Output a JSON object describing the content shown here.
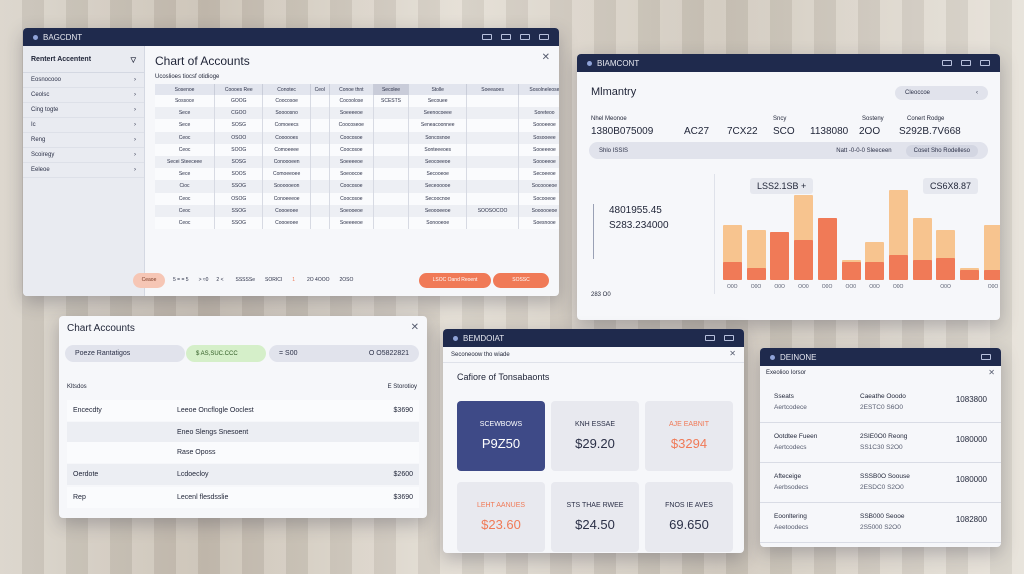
{
  "colors": {
    "titlebar": "#1f2a4d",
    "accent_orange": "#f07a57",
    "accent_peach": "#f7c48f",
    "card_navy": "#3e4a87"
  },
  "win_a": {
    "titlebar": "BAGCDNT",
    "sidebar_heading": "Rentert Accentent",
    "sidebar_items": [
      "Eosnocooo",
      "Ceolsc",
      "Cing togte",
      "Ic",
      "Reng",
      "Scoiregy",
      "Eeleoe"
    ],
    "title": "Chart of Accounts",
    "subtitle": "Ucoslioes tiocsf otidioge",
    "columns": [
      "Sosenoe",
      "Coooes Ree",
      "Conotec",
      "Ceol",
      "Conoe thnt",
      "Secolee",
      "Stolle",
      "Soeeaoes",
      "Sosolneleose"
    ],
    "rows": [
      [
        "Sossoce",
        "GOOG",
        "Coocosoe",
        "",
        "Cocoolose",
        "SCESTS",
        "Secouee",
        "",
        ""
      ],
      [
        "Sece",
        "CGOO",
        "Soooosno",
        "",
        "Soeeeeoe",
        "",
        "Seenocoeee",
        "",
        "Soreteoo"
      ],
      [
        "Sece",
        "SOSG",
        "Comoeecs",
        "",
        "Coocoseoe",
        "",
        "Seneacoonnee",
        "",
        "Soooeeoe"
      ],
      [
        "Ceoc",
        "OSOO",
        "Coooooes",
        "",
        "Coocosoe",
        "",
        "Soncosnoe",
        "",
        "Sosooeee"
      ],
      [
        "Ceoc",
        "SOOG",
        "Comoeeee",
        "",
        "Coocosoe",
        "",
        "Sonteeeoes",
        "",
        "Sooeeeoe"
      ],
      [
        "Secei Steeceee",
        "SOSG",
        "Conoooeen",
        "",
        "Soeeeeoe",
        "",
        "Seocoeeoe",
        "",
        "Soooeeoe"
      ],
      [
        "Sece",
        "SOOS",
        "Comoeeoee",
        "",
        "Soeoocoe",
        "",
        "Secooeoe",
        "",
        "Secoeeoe"
      ],
      [
        "Cioc",
        "SSOG",
        "Soooooeon",
        "",
        "Coocosoe",
        "",
        "Seceooooe",
        "",
        "Socoooeoe"
      ],
      [
        "Ceoc",
        "OSOG",
        "Conoeeeoe",
        "",
        "Coocosoe",
        "",
        "Secoocnoe",
        "",
        "Socooeoe"
      ],
      [
        "Ceoc",
        "SSOG",
        "Coooeoee",
        "",
        "Soeooeoe",
        "",
        "Seoooeeoe",
        "SOOSOCOO",
        "Soooooeoe"
      ],
      [
        "Ceoc",
        "SSOG",
        "Coooeoee",
        "",
        "Soeeeeoe",
        "",
        "Sonooeoe",
        "",
        "Soesnooe"
      ]
    ],
    "footer": {
      "left_button": "Ceaoe",
      "pager_a": "5 = = 5",
      "pager_b": "> ≈0",
      "pager_c": "2 <",
      "pager_d": "SSSSSe",
      "pager_e": "SORICI",
      "pager_f": "1",
      "mid_label": "2O 4OOO",
      "mid_label2": "2OSO",
      "primary_button": "LSOC Oand Reoent",
      "secondary_button": "SOSSC"
    }
  },
  "win_b": {
    "titlebar": "BIAMCONT",
    "title": "Mlmantry",
    "search_placeholder": "Cleoccoe",
    "stat_labels": {
      "first": "Nhel Meonoe",
      "fourth": "Sncy",
      "sixth": "Sosteny",
      "seventh": "Conert Rodge"
    },
    "stat_values": [
      "1380B075009",
      "AC27",
      "7CX22",
      "SCO",
      "1138080",
      "2OO",
      "S292B.7V668"
    ],
    "pill_left": "Shlo ISSIS",
    "pill_mid": "Natt -0-0-0 Sleeceen",
    "pill_right": "Coset Sho Rodelleso",
    "big_primary": "4801955.45",
    "big_secondary": "S283.234000",
    "bottom_label": "283 O0",
    "tag_left": "LSS2.1SB +",
    "tag_right": "CS6X8.87",
    "chart_data": {
      "type": "bar",
      "categories": [
        "",
        "",
        "",
        "",
        "",
        "",
        "",
        "",
        "",
        "",
        "",
        ""
      ],
      "series": [
        {
          "values": [
            0.55,
            0.5,
            0.48,
            0.85,
            0.62,
            0.2,
            0.38,
            0.9,
            0.62,
            0.5,
            0.12,
            0.55
          ]
        },
        {
          "values": [
            0.18,
            0.12,
            0.48,
            0.4,
            0.62,
            0.18,
            0.18,
            0.25,
            0.2,
            0.22,
            0.1,
            0.1
          ]
        }
      ],
      "tick_labels": [
        "O0O",
        "O0O",
        "O0O",
        "OO0",
        "O0O",
        "OO0",
        "O0O",
        "O0O",
        "",
        "O0O",
        "",
        "O0O"
      ]
    }
  },
  "win_c": {
    "title": "Chart Accounts",
    "pill_left": "Poeze Rantatigos",
    "pill_green": "$ AS,SUC.CCC",
    "pill_mid": "= S00",
    "pill_right": "O O5822821",
    "list_heading": "Kltsdos",
    "list_heading_right": "E Storotioy",
    "rows": [
      {
        "left": "Encecdty",
        "mid": "Leeoe Oncflogle Ooclest",
        "right": "$3690"
      },
      {
        "left": "",
        "mid": "Eneo Slengs Snesoent",
        "right": ""
      },
      {
        "left": "",
        "mid": "Rase Oposs",
        "right": ""
      },
      {
        "left": "Oerdote",
        "mid": "Lcdoecloy",
        "right": "$2600"
      },
      {
        "left": "Rep",
        "mid": "Lecenl flesdsslie",
        "right": "$3690"
      }
    ]
  },
  "win_d": {
    "titlebar": "BEMDOIAT",
    "subtitle": "Seconeoow tho wiade",
    "title": "Cafiore of Tonsabaonts",
    "cards": [
      {
        "label": "SCEWBOWS",
        "value": "P9Z50"
      },
      {
        "label": "KNH ESSAE",
        "value": "$29.20"
      },
      {
        "label": "AJE EABNIT",
        "value": "$3294"
      },
      {
        "label": "LEHT AANUES",
        "value": "$23.60"
      },
      {
        "label": "STS THAE RWEE",
        "value": "$24.50"
      },
      {
        "label": "FNOS IE AVES",
        "value": "69.650"
      }
    ]
  },
  "win_e": {
    "titlebar": "DEINONE",
    "subtitle": "Exeolioo Iorsor",
    "rows": [
      {
        "l1": "Sseats",
        "l2": "Aertcodece",
        "m1": "Caeathe Ooodo",
        "m2": "2ESTC0 S6O0",
        "r": "1083800"
      },
      {
        "l1": "Ootdtee Fueen",
        "l2": "Aertcodecs",
        "m1": "2SIE0O0 Reong",
        "m2": "SS1C30 S2O0",
        "r": "1080000"
      },
      {
        "l1": "Afteceige",
        "l2": "Aerbsodecs",
        "m1": "SSSB0O Soouse",
        "m2": "2ESDC0 S2O0",
        "r": "1080000"
      },
      {
        "l1": "Eoonltering",
        "l2": "Aeetoodecs",
        "m1": "SSB000 Seooe",
        "m2": "2S5000 S2O0",
        "r": "1082800"
      }
    ]
  }
}
